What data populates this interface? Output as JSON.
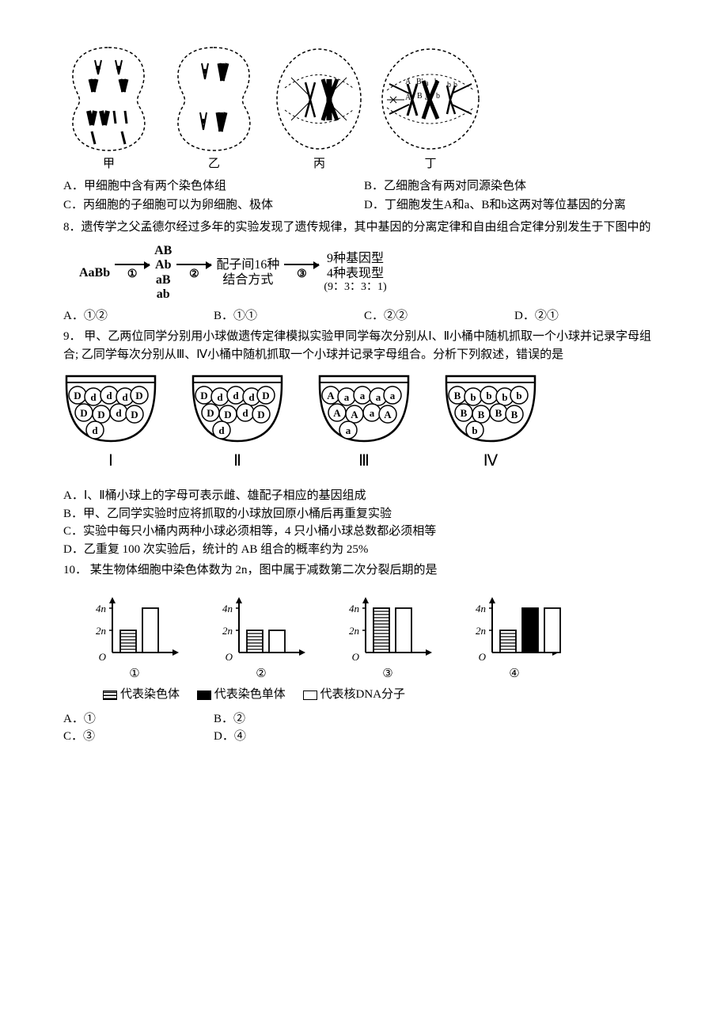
{
  "q7": {
    "cell_labels": [
      "甲",
      "乙",
      "丙",
      "丁"
    ],
    "opt_a": "A．甲细胞中含有两个染色体组",
    "opt_b": "B．乙细胞含有两对同源染色体",
    "opt_c": "C．丙细胞的子细胞可以为卵细胞、极体",
    "opt_d": "D．丁细胞发生A和a、B和b这两对等位基因的分离"
  },
  "q8": {
    "stem": "8．遗传学之父孟德尔经过多年的实验发现了遗传规律，其中基因的分离定律和自由组合定律分别发生于下图中的",
    "flow": {
      "start": "AaBb",
      "step1_products": [
        "AB",
        "Ab",
        "aB",
        "ab"
      ],
      "num1": "①",
      "num2": "②",
      "num3": "③",
      "mid_top": "配子间16种",
      "mid_bot": "结合方式",
      "end_top": "9种基因型",
      "end_mid": "4种表现型",
      "end_bot": "(9：3：3：1)"
    },
    "opt_a": "A．①②",
    "opt_b": "B．①①",
    "opt_c": "C．②②",
    "opt_d": "D．②①"
  },
  "q9": {
    "stem": "9． 甲、乙两位同学分别用小球做遗传定律模拟实验甲同学每次分别从Ⅰ、Ⅱ小桶中随机抓取一个小球并记录字母组合; 乙同学每次分别从Ⅲ、Ⅳ小桶中随机抓取一个小球并记录字母组合。分析下列叙述，错误的是",
    "buckets": {
      "labels": [
        "Ⅰ",
        "Ⅱ",
        "Ⅲ",
        "Ⅳ"
      ],
      "balls": [
        [
          "D",
          "d",
          "d",
          "d",
          "D",
          "D",
          "D",
          "d",
          "D",
          "d"
        ],
        [
          "D",
          "d",
          "d",
          "d",
          "D",
          "D",
          "D",
          "d",
          "D",
          "d"
        ],
        [
          "A",
          "a",
          "a",
          "a",
          "a",
          "A",
          "A",
          "a",
          "A",
          "a"
        ],
        [
          "B",
          "b",
          "b",
          "b",
          "b",
          "B",
          "B",
          "B",
          "B",
          "b"
        ]
      ]
    },
    "opt_a": "A．Ⅰ、Ⅱ桶小球上的字母可表示雌、雄配子相应的基因组成",
    "opt_b": "B．甲、乙同学实验时应将抓取的小球放回原小桶后再重复实验",
    "opt_c": "C．实验中每只小桶内两种小球必须相等，4 只小桶小球总数都必须相等",
    "opt_d": "D．乙重复 100 次实验后，统计的 AB 组合的概率约为 25%"
  },
  "q10": {
    "stem": "10． 某生物体细胞中染色体数为 2n，图中属于减数第二次分裂后期的是",
    "y_ticks": [
      "4n",
      "2n"
    ],
    "charts": [
      {
        "bars": [
          {
            "fill": "hatch",
            "h": 0.5
          },
          {
            "fill": "none",
            "h": 1.0
          }
        ]
      },
      {
        "bars": [
          {
            "fill": "hatch",
            "h": 0.5
          },
          {
            "fill": "none",
            "h": 0.5
          }
        ]
      },
      {
        "bars": [
          {
            "fill": "hatch",
            "h": 1.0
          },
          {
            "fill": "none",
            "h": 1.0
          }
        ]
      },
      {
        "bars": [
          {
            "fill": "hatch",
            "h": 0.5
          },
          {
            "fill": "solid",
            "h": 1.0
          },
          {
            "fill": "none",
            "h": 1.0
          }
        ]
      }
    ],
    "chart_labels": [
      "①",
      "②",
      "③",
      "④"
    ],
    "legend": [
      "代表染色体",
      "代表染色单体",
      "代表核DNA分子"
    ],
    "opt_a": "A．①",
    "opt_b": "B．②",
    "opt_c": "C．③",
    "opt_d": "D．④"
  },
  "colors": {
    "stroke": "#000000",
    "bg": "#ffffff"
  }
}
